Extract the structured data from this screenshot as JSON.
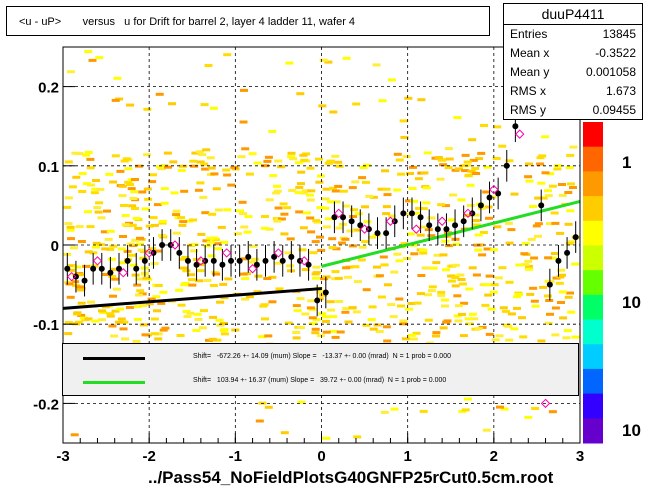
{
  "title": "<u - uP>       versus   u for Drift for barrel 2, layer 4 ladder 11, wafer 4",
  "stats": {
    "name": "duuP4411",
    "rows": [
      {
        "label": "Entries",
        "value": "13845"
      },
      {
        "label": "Mean x",
        "value": "-0.3522"
      },
      {
        "label": "Mean y",
        "value": "0.001058"
      },
      {
        "label": "RMS x",
        "value": "1.673"
      },
      {
        "label": "RMS y",
        "value": "0.09455"
      }
    ]
  },
  "footer": "../Pass54_NoFieldPlotsG40GNFP25rCut0.5cm.root",
  "legend": {
    "entries": [
      {
        "text": "Shift=   -672.26 +- 14.09 (mum) Slope =   -13.37 +- 0.00 (mrad)  N = 1 prob = 0.000",
        "color": "#000000"
      },
      {
        "text": "Shift=   103.94 +- 16.37 (mum) Slope =   39.72 +- 0.00 (mrad)  N = 1 prob = 0.000",
        "color": "#22dd22"
      }
    ]
  },
  "chart_data": {
    "type": "scatter",
    "xlim": [
      -3,
      3
    ],
    "ylim": [
      -0.25,
      0.25
    ],
    "x_ticks": [
      "-3",
      "-2",
      "-1",
      "0",
      "1",
      "2",
      "3"
    ],
    "y_ticks": [
      "-0.2",
      "-0.1",
      "0",
      "0.1",
      "0.2"
    ],
    "z_ticks": [
      "1",
      "10",
      "10"
    ],
    "grid": true,
    "series": [
      {
        "x": [
          -2.95,
          -2.85,
          -2.75,
          -2.65,
          -2.55,
          -2.45,
          -2.35,
          -2.25,
          -2.15,
          -2.05,
          -1.95,
          -1.85,
          -1.75,
          -1.65,
          -1.55,
          -1.45,
          -1.35,
          -1.25,
          -1.15,
          -1.05,
          -0.95,
          -0.85,
          -0.75,
          -0.65,
          -0.55,
          -0.45,
          -0.35,
          -0.25,
          -0.15,
          -0.05,
          0.05,
          0.15,
          0.25,
          0.35,
          0.45,
          0.55,
          0.65,
          0.75,
          0.85,
          0.95,
          1.05,
          1.15,
          1.25,
          1.35,
          1.45,
          1.55,
          1.65,
          1.75,
          1.85,
          1.95,
          2.05,
          2.15,
          2.25,
          2.35,
          2.45,
          2.55,
          2.65,
          2.75,
          2.85,
          2.95
        ],
        "y": [
          -0.03,
          -0.04,
          -0.045,
          -0.03,
          -0.03,
          -0.035,
          -0.03,
          -0.02,
          -0.03,
          -0.02,
          -0.01,
          0.0,
          0.0,
          -0.01,
          -0.02,
          -0.025,
          -0.02,
          -0.02,
          -0.025,
          -0.02,
          -0.02,
          -0.015,
          -0.025,
          -0.02,
          -0.015,
          -0.02,
          -0.015,
          -0.02,
          -0.025,
          -0.07,
          -0.06,
          0.035,
          0.035,
          0.03,
          0.025,
          0.02,
          0.015,
          0.015,
          0.03,
          0.04,
          0.04,
          0.035,
          0.025,
          0.02,
          0.02,
          0.025,
          0.03,
          0.04,
          0.05,
          0.06,
          0.065,
          0.1,
          0.15,
          0.2,
          0.22,
          0.05,
          -0.05,
          -0.02,
          -0.01,
          0.01
        ]
      },
      {
        "x": [
          -2.9,
          -2.6,
          -2.3,
          -2.0,
          -1.7,
          -1.4,
          -1.1,
          -0.8,
          -0.5,
          -0.2,
          0.2,
          0.5,
          0.8,
          1.1,
          1.4,
          1.7,
          2.0,
          2.3,
          2.5,
          2.6
        ],
        "y": [
          -0.04,
          -0.02,
          -0.035,
          -0.01,
          0.0,
          -0.02,
          -0.01,
          -0.03,
          -0.01,
          -0.02,
          0.04,
          0.02,
          0.03,
          0.02,
          0.03,
          0.04,
          0.07,
          0.14,
          0.2,
          -0.2
        ]
      }
    ],
    "fits": [
      {
        "x": [
          -3,
          0
        ],
        "y": [
          -0.08,
          -0.055
        ]
      },
      {
        "x": [
          0,
          3
        ],
        "y": [
          -0.027,
          0.055
        ]
      }
    ]
  }
}
